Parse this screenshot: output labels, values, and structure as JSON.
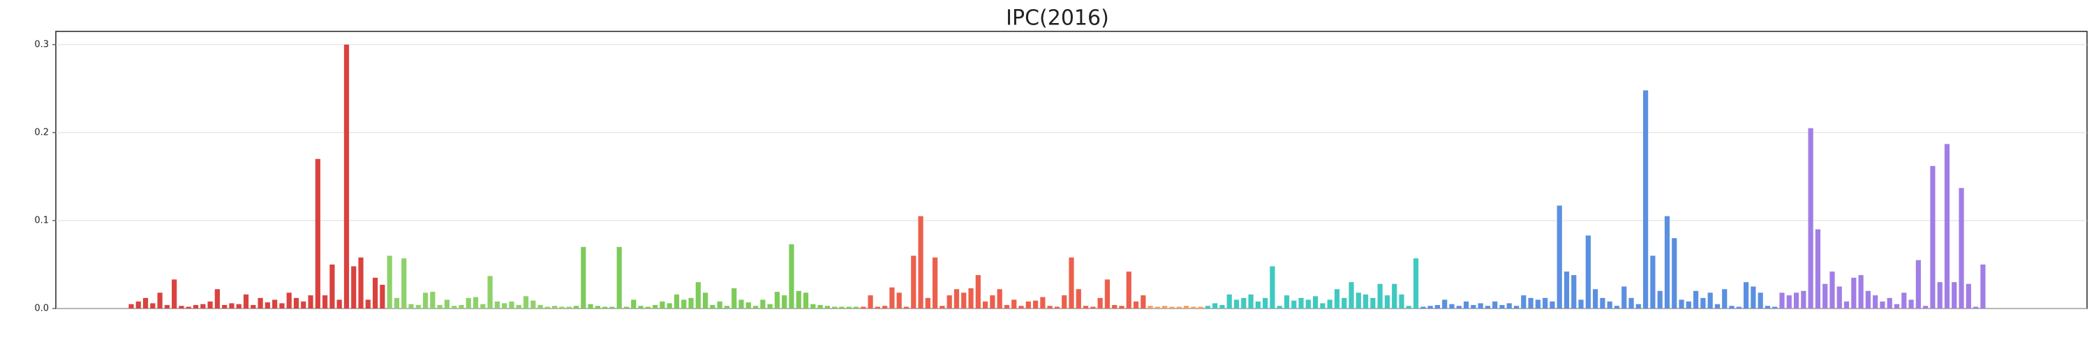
{
  "chart_data": {
    "type": "bar",
    "title": "IPC(2016)",
    "ylim": [
      0,
      0.315
    ],
    "yticks": [
      {
        "value": 0,
        "label": "0.0"
      },
      0.1,
      0.2,
      0.3
    ],
    "grid": true,
    "series": [
      {
        "color": "#d9423f",
        "values": [
          0.005,
          0.008,
          0.012,
          0.006,
          0.018,
          0.004,
          0.033,
          0.003,
          0.002,
          0.004,
          0.005,
          0.008,
          0.022,
          0.004,
          0.006,
          0.005,
          0.016,
          0.004,
          0.012,
          0.007,
          0.01,
          0.006,
          0.018,
          0.012,
          0.008,
          0.015,
          0.17,
          0.015,
          0.05,
          0.01,
          0.3,
          0.048,
          0.058,
          0.01,
          0.035,
          0.027
        ]
      },
      {
        "color": "#8ed16a",
        "values": [
          0.06,
          0.012,
          0.057,
          0.005,
          0.004,
          0.018,
          0.019,
          0.004,
          0.01,
          0.003,
          0.004,
          0.012,
          0.013,
          0.005,
          0.037,
          0.008,
          0.006,
          0.008,
          0.004,
          0.014,
          0.009,
          0.004,
          0.002,
          0.003,
          0.002,
          0.002
        ]
      },
      {
        "color": "#7dcb5a",
        "values": [
          0.003,
          0.07,
          0.005,
          0.003,
          0.002,
          0.002,
          0.07,
          0.002,
          0.01,
          0.003,
          0.002,
          0.004,
          0.008,
          0.006,
          0.016,
          0.01,
          0.012,
          0.03,
          0.018,
          0.004,
          0.008,
          0.003,
          0.023,
          0.01,
          0.007,
          0.003,
          0.01,
          0.005,
          0.019,
          0.015,
          0.073,
          0.02,
          0.018,
          0.005,
          0.004,
          0.003,
          0.002,
          0.002,
          0.002,
          0.002
        ]
      },
      {
        "color": "#ec5f4c",
        "values": [
          0.002,
          0.015,
          0.002,
          0.003,
          0.024,
          0.018,
          0.002,
          0.06,
          0.105,
          0.012,
          0.058,
          0.003,
          0.015,
          0.022,
          0.018,
          0.023,
          0.038,
          0.008,
          0.015,
          0.022,
          0.004,
          0.01,
          0.003,
          0.008,
          0.009,
          0.013,
          0.003,
          0.002,
          0.015,
          0.058,
          0.022,
          0.003,
          0.002,
          0.012,
          0.033,
          0.004,
          0.003,
          0.042,
          0.008,
          0.015
        ]
      },
      {
        "color": "#f0a060",
        "values": [
          0.003,
          0.002,
          0.003,
          0.002,
          0.002,
          0.003,
          0.002,
          0.002
        ]
      },
      {
        "color": "#3fc9c0",
        "values": [
          0.003,
          0.006,
          0.004,
          0.016,
          0.01,
          0.012,
          0.016,
          0.008,
          0.012,
          0.048,
          0.003,
          0.015,
          0.009,
          0.012,
          0.01,
          0.014,
          0.006,
          0.01,
          0.022,
          0.012,
          0.03,
          0.018,
          0.016,
          0.012,
          0.028,
          0.015,
          0.028,
          0.016,
          0.003,
          0.057
        ]
      },
      {
        "color": "#5b8fe0",
        "values": [
          0.002,
          0.003,
          0.004,
          0.01,
          0.005,
          0.003,
          0.008,
          0.004,
          0.006,
          0.003,
          0.008,
          0.004,
          0.006,
          0.003,
          0.015,
          0.012,
          0.01,
          0.012,
          0.008,
          0.117,
          0.042,
          0.038,
          0.01,
          0.083,
          0.022,
          0.012,
          0.008,
          0.003,
          0.025,
          0.012,
          0.005,
          0.248,
          0.06,
          0.02,
          0.105,
          0.08,
          0.01,
          0.008,
          0.02,
          0.012,
          0.018,
          0.005,
          0.022,
          0.003,
          0.002,
          0.03,
          0.025,
          0.018,
          0.003,
          0.002
        ]
      },
      {
        "color": "#a17ee6",
        "values": [
          0.018,
          0.015,
          0.018,
          0.02,
          0.205,
          0.09,
          0.028,
          0.042,
          0.025,
          0.008,
          0.035,
          0.038,
          0.02,
          0.015,
          0.008,
          0.012,
          0.005,
          0.018,
          0.01,
          0.055,
          0.003,
          0.162,
          0.03,
          0.187,
          0.03,
          0.137,
          0.028,
          0.002,
          0.05
        ]
      }
    ]
  }
}
